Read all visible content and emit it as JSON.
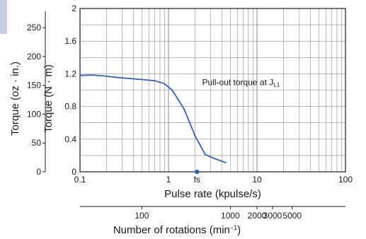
{
  "chart_data": {
    "type": "line",
    "xscale": "log",
    "xlim": [
      0.1,
      100
    ],
    "ylim": [
      0,
      2
    ],
    "grid": true,
    "xlabel": "Pulse rate (kpulse/s)",
    "ylabel_nm": "Torque (N · m)",
    "ylabel_ozin": "Torque (oz · in.)",
    "x_ticks": [
      {
        "value": 0.1,
        "label": "0.1"
      },
      {
        "value": 1,
        "label": "1"
      },
      {
        "value": 10,
        "label": "10"
      },
      {
        "value": 100,
        "label": "100"
      }
    ],
    "y_ticks_nm": [
      {
        "value": 0,
        "label": "0"
      },
      {
        "value": 0.4,
        "label": "0.4"
      },
      {
        "value": 0.8,
        "label": "0.8"
      },
      {
        "value": 1.2,
        "label": "1.2"
      },
      {
        "value": 1.6,
        "label": "1.6"
      },
      {
        "value": 2,
        "label": "2"
      }
    ],
    "y_ticks_ozin": [
      {
        "value": 0,
        "label": "0"
      },
      {
        "value": 50,
        "label": "50"
      },
      {
        "value": 100,
        "label": "100"
      },
      {
        "value": 150,
        "label": "150"
      },
      {
        "value": 200,
        "label": "200"
      },
      {
        "value": 250,
        "label": "250"
      }
    ],
    "nm_per_ozin": 0.00706,
    "series": [
      {
        "name": "Pull-out torque at JL1",
        "x": [
          0.1,
          0.14,
          0.2,
          0.3,
          0.5,
          0.7,
          0.9,
          1.1,
          1.5,
          2.0,
          2.6,
          3.2,
          4.5
        ],
        "y": [
          1.18,
          1.185,
          1.17,
          1.15,
          1.13,
          1.115,
          1.08,
          1.0,
          0.77,
          0.44,
          0.21,
          0.17,
          0.11
        ]
      }
    ],
    "annotations": [
      {
        "text_main": "Pull-out torque at J",
        "text_sub": "L1",
        "x": 2.4,
        "y": 1.06
      }
    ],
    "marker": {
      "label": "fs",
      "x": 2.1,
      "y": 0
    },
    "rotation_axis": {
      "label_main": "Number of rotations (min",
      "label_sup": "−1",
      "label_end": ")",
      "ticks": [
        {
          "value": 100,
          "label": "100"
        },
        {
          "value": 1000,
          "label": "1000"
        },
        {
          "value": 2000,
          "label": "2000"
        },
        {
          "value": 3000,
          "label": "3000"
        },
        {
          "value": 5000,
          "label": "5000"
        }
      ],
      "rotations_per_kpulse": 200
    },
    "colors": {
      "line": "#3a5fb0",
      "marker": "#3a5fb0",
      "grid": "#8a8a8a",
      "axis": "#1a1a1a",
      "tab": "#c9cde3"
    }
  }
}
